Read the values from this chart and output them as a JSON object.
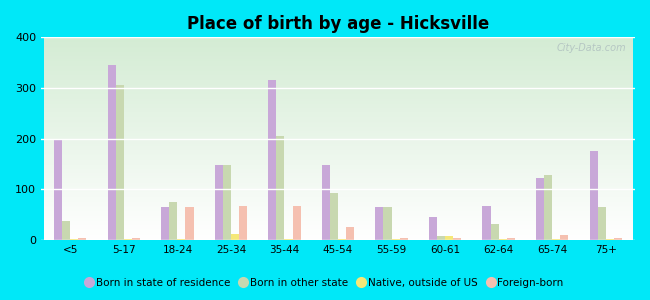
{
  "title": "Place of birth by age - Hicksville",
  "categories": [
    "<5",
    "5-17",
    "18-24",
    "25-34",
    "35-44",
    "45-54",
    "55-59",
    "60-61",
    "62-64",
    "65-74",
    "75+"
  ],
  "series": {
    "Born in state of residence": [
      200,
      345,
      65,
      148,
      315,
      148,
      65,
      45,
      68,
      122,
      175
    ],
    "Born in other state": [
      38,
      305,
      75,
      148,
      205,
      92,
      65,
      8,
      32,
      128,
      65
    ],
    "Native, outside of US": [
      3,
      3,
      3,
      12,
      3,
      3,
      3,
      8,
      3,
      3,
      3
    ],
    "Foreign-born": [
      5,
      5,
      65,
      68,
      68,
      25,
      5,
      5,
      5,
      10,
      5
    ]
  },
  "bar_colors": {
    "Born in state of residence": "#c8a8d8",
    "Born in other state": "#c8d8b0",
    "Native, outside of US": "#f5e878",
    "Foreign-born": "#f5c0b0"
  },
  "legend_colors": {
    "Born in state of residence": "#d4b8e0",
    "Born in other state": "#d8e8c0",
    "Native, outside of US": "#f8f080",
    "Foreign-born": "#f8c8c0"
  },
  "ylim": [
    0,
    400
  ],
  "yticks": [
    0,
    100,
    200,
    300,
    400
  ],
  "figure_bg": "#00e8f8",
  "grid_color": "#e8e8e8",
  "watermark": "City-Data.com",
  "bar_width": 0.15
}
